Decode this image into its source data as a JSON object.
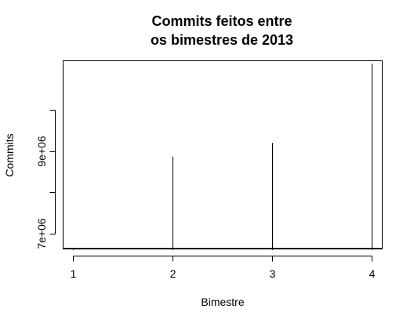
{
  "chart_data": {
    "type": "bar",
    "title_line1": "Commits feitos entre",
    "title_line2": "os bimestres de 2013",
    "xlabel": "Bimestre",
    "ylabel": "Commits",
    "x": [
      1,
      2,
      3,
      4
    ],
    "values": [
      6640000,
      8870000,
      9200000,
      11120000
    ],
    "x_ticks": [
      "1",
      "2",
      "3",
      "4"
    ],
    "y_ticks_major": [
      {
        "value": 7000000,
        "label": "7e+06"
      },
      {
        "value": 9000000,
        "label": "9e+06"
      }
    ],
    "y_ticks_minor": [
      8000000,
      10000000
    ],
    "xlim": [
      0.9,
      4.1
    ],
    "ylim": [
      6640000,
      11200000
    ],
    "grid": false,
    "color": "#000000"
  }
}
